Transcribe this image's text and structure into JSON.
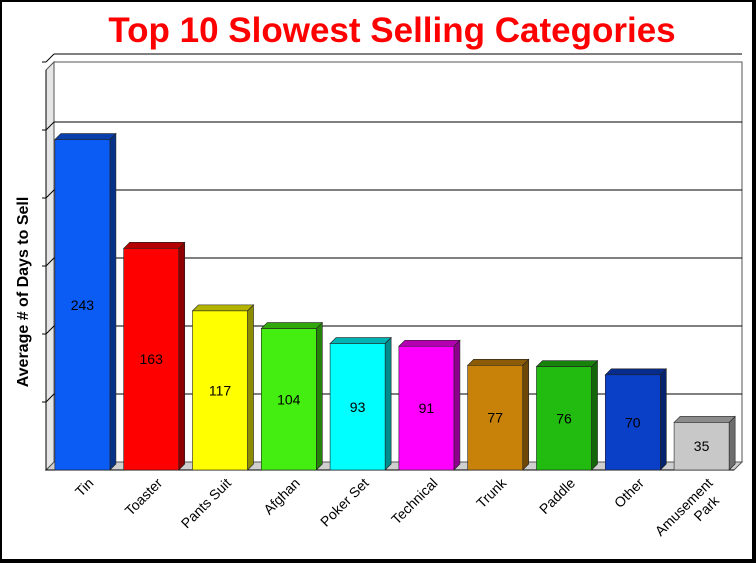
{
  "chart_data": {
    "type": "bar",
    "title": "Top 10 Slowest Selling Categories",
    "xlabel": "",
    "ylabel": "Average # of Days to Sell",
    "categories": [
      "Tin",
      "Toaster",
      "Pants Suit",
      "Afghan",
      "Poker Set",
      "Technical",
      "Trunk",
      "Paddle",
      "Other",
      "Amusement Park"
    ],
    "category_lines": [
      [
        "Tin"
      ],
      [
        "Toaster"
      ],
      [
        "Pants Suit"
      ],
      [
        "Afghan"
      ],
      [
        "Poker Set"
      ],
      [
        "Technical"
      ],
      [
        "Trunk"
      ],
      [
        "Paddle"
      ],
      [
        "Other"
      ],
      [
        "Amusement",
        "Park"
      ]
    ],
    "values": [
      243,
      163,
      117,
      104,
      93,
      91,
      77,
      76,
      70,
      35
    ],
    "value_labels": [
      "243",
      "163",
      "117",
      "104",
      "93",
      "91",
      "77",
      "76",
      "70",
      "35"
    ],
    "colors": [
      "#0a5cf5",
      "#ff0000",
      "#ffff00",
      "#44ee10",
      "#00ffff",
      "#ff00ff",
      "#c8820a",
      "#22bb10",
      "#0a3fc8",
      "#c8c8c8"
    ],
    "ylim": [
      0,
      300
    ],
    "grid": true,
    "y_tick_labels_shown": false,
    "legend": "none",
    "style": "3d-bars",
    "title_color": "#ff0000"
  }
}
